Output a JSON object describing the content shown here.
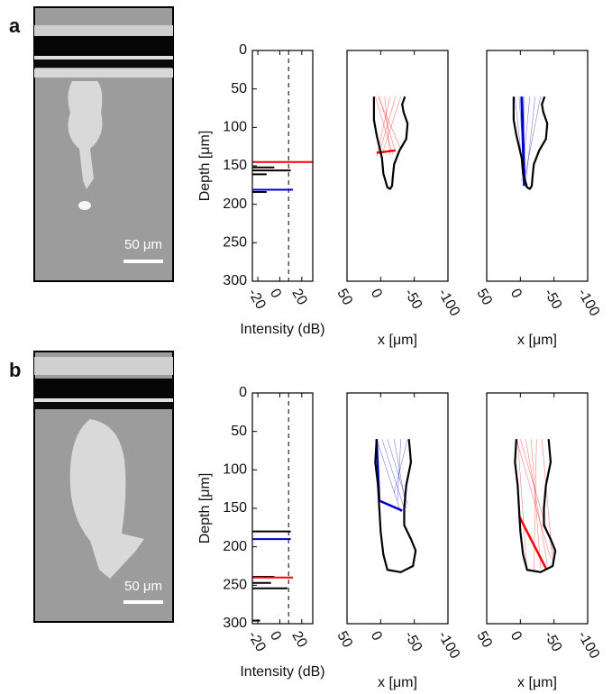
{
  "figure": {
    "panels": [
      {
        "label": "a",
        "scale_bar": "50 μm"
      },
      {
        "label": "b",
        "scale_bar": "50 μm"
      }
    ]
  },
  "chart_data": [
    {
      "type": "intensity",
      "xlabel": "Intensity (dB)",
      "ylabel": "Depth [μm]",
      "xlim": [
        -25,
        30
      ],
      "xticks": [
        -20,
        0,
        20
      ],
      "ylim": [
        0,
        300
      ],
      "yticks": [
        0,
        50,
        100,
        150,
        200,
        250,
        300
      ],
      "y_inverted": true,
      "threshold": 8,
      "y": [
        145,
        152,
        156,
        161,
        181,
        184
      ],
      "values": [
        30,
        -5,
        10,
        -12,
        12,
        -12
      ],
      "colors": [
        "#ff0000",
        "#000000",
        "#000000",
        "#000000",
        "#0000cc",
        "#000000"
      ]
    },
    {
      "type": "line",
      "xlabel": "x [μm]",
      "xlim": [
        50,
        -100
      ],
      "xticks": [
        50,
        0,
        -50,
        -100
      ],
      "ylim": [
        0,
        300
      ],
      "y_inverted": true,
      "series": [
        {
          "color": "#ff0000",
          "line_width": 0.6,
          "x": [
            8,
            -18
          ],
          "y": [
            60,
            135
          ]
        },
        {
          "color": "#ff0000",
          "line_width": 0.6,
          "x": [
            2,
            -22
          ],
          "y": [
            60,
            132
          ]
        },
        {
          "color": "#ff0000",
          "line_width": 0.6,
          "x": [
            -6,
            -14
          ],
          "y": [
            60,
            136
          ]
        },
        {
          "color": "#ff0000",
          "line_width": 0.6,
          "x": [
            -14,
            6
          ],
          "y": [
            60,
            138
          ]
        },
        {
          "color": "#ff0000",
          "line_width": 0.6,
          "x": [
            -22,
            2
          ],
          "y": [
            60,
            134
          ]
        },
        {
          "color": "#ff0000",
          "line_width": 0.6,
          "x": [
            -30,
            -4
          ],
          "y": [
            60,
            130
          ]
        },
        {
          "color": "#ff0000",
          "line_width": 0.6,
          "x": [
            4,
            -30
          ],
          "y": [
            60,
            128
          ]
        },
        {
          "color": "#ff0000",
          "line_width": 2.5,
          "x": [
            6,
            -22
          ],
          "y": [
            133,
            130
          ]
        },
        {
          "color": "#000000",
          "line_width": 2.2,
          "x": [
            10,
            10,
            6,
            2,
            -2,
            -4,
            -10,
            -14,
            -17,
            -18,
            -20,
            -28,
            -38,
            -40,
            -34,
            -32,
            -36
          ],
          "y": [
            60,
            90,
            110,
            125,
            140,
            160,
            178,
            180,
            176,
            165,
            148,
            130,
            115,
            95,
            80,
            70,
            60
          ]
        }
      ]
    },
    {
      "type": "line",
      "xlabel": "x [μm]",
      "xlim": [
        50,
        -100
      ],
      "xticks": [
        50,
        0,
        -50,
        -100
      ],
      "ylim": [
        0,
        300
      ],
      "y_inverted": true,
      "series": [
        {
          "color": "#0000cc",
          "line_width": 0.6,
          "x": [
            8,
            -6
          ],
          "y": [
            60,
            175
          ]
        },
        {
          "color": "#0000cc",
          "line_width": 0.6,
          "x": [
            2,
            -8
          ],
          "y": [
            60,
            178
          ]
        },
        {
          "color": "#0000cc",
          "line_width": 0.6,
          "x": [
            -6,
            -4
          ],
          "y": [
            60,
            176
          ]
        },
        {
          "color": "#0000cc",
          "line_width": 0.6,
          "x": [
            -14,
            -2
          ],
          "y": [
            60,
            170
          ]
        },
        {
          "color": "#0000cc",
          "line_width": 0.6,
          "x": [
            -22,
            -8
          ],
          "y": [
            60,
            172
          ]
        },
        {
          "color": "#0000cc",
          "line_width": 0.6,
          "x": [
            -30,
            -6
          ],
          "y": [
            60,
            168
          ]
        },
        {
          "color": "#0000cc",
          "line_width": 3,
          "x": [
            -2,
            -6
          ],
          "y": [
            60,
            176
          ]
        },
        {
          "color": "#000000",
          "line_width": 2.2,
          "x": [
            10,
            10,
            6,
            2,
            -2,
            -4,
            -10,
            -14,
            -17,
            -18,
            -20,
            -28,
            -38,
            -40,
            -34,
            -32,
            -36
          ],
          "y": [
            60,
            90,
            110,
            125,
            140,
            160,
            178,
            180,
            176,
            165,
            148,
            130,
            115,
            95,
            80,
            70,
            60
          ]
        }
      ]
    },
    {
      "type": "intensity",
      "xlabel": "Intensity (dB)",
      "ylabel": "Depth [μm]",
      "xlim": [
        -25,
        30
      ],
      "xticks": [
        -20,
        0,
        20
      ],
      "ylim": [
        0,
        300
      ],
      "yticks": [
        0,
        50,
        100,
        150,
        200,
        250,
        300
      ],
      "y_inverted": true,
      "threshold": 8,
      "y": [
        180,
        190,
        239,
        240,
        247,
        254,
        296
      ],
      "values": [
        10,
        10,
        -5,
        12,
        -8,
        7,
        -18
      ],
      "colors": [
        "#000000",
        "#0000cc",
        "#000000",
        "#ff0000",
        "#000000",
        "#000000",
        "#000000"
      ]
    },
    {
      "type": "line",
      "xlabel": "x [μm]",
      "xlim": [
        50,
        -100
      ],
      "xticks": [
        50,
        0,
        -50,
        -100
      ],
      "ylim": [
        0,
        300
      ],
      "y_inverted": true,
      "series": [
        {
          "color": "#0000cc",
          "line_width": 0.6,
          "x": [
            6,
            -30
          ],
          "y": [
            60,
            155
          ]
        },
        {
          "color": "#0000cc",
          "line_width": 0.6,
          "x": [
            -2,
            -35
          ],
          "y": [
            60,
            150
          ]
        },
        {
          "color": "#0000cc",
          "line_width": 0.6,
          "x": [
            -10,
            -40
          ],
          "y": [
            60,
            145
          ]
        },
        {
          "color": "#0000cc",
          "line_width": 0.6,
          "x": [
            -20,
            -38
          ],
          "y": [
            60,
            150
          ]
        },
        {
          "color": "#0000cc",
          "line_width": 0.6,
          "x": [
            -30,
            -25
          ],
          "y": [
            60,
            140
          ]
        },
        {
          "color": "#0000cc",
          "line_width": 0.6,
          "x": [
            -40,
            -20
          ],
          "y": [
            60,
            130
          ]
        },
        {
          "color": "#0000cc",
          "line_width": 2.5,
          "x": [
            6,
            2,
            -32
          ],
          "y": [
            60,
            140,
            153
          ]
        },
        {
          "color": "#000000",
          "line_width": 2.2,
          "x": [
            6,
            8,
            4,
            2,
            0,
            -4,
            -10,
            -30,
            -48,
            -52,
            -45,
            -35,
            -35,
            -38,
            -45,
            -42
          ],
          "y": [
            60,
            90,
            120,
            150,
            180,
            210,
            230,
            233,
            225,
            205,
            190,
            172,
            150,
            120,
            90,
            60
          ]
        }
      ]
    },
    {
      "type": "line",
      "xlabel": "x [μm]",
      "xlim": [
        50,
        -100
      ],
      "xticks": [
        50,
        0,
        -50,
        -100
      ],
      "ylim": [
        0,
        300
      ],
      "y_inverted": true,
      "series": [
        {
          "color": "#ff0000",
          "line_width": 0.6,
          "x": [
            6,
            -45
          ],
          "y": [
            60,
            215
          ]
        },
        {
          "color": "#ff0000",
          "line_width": 0.6,
          "x": [
            0,
            -50
          ],
          "y": [
            60,
            210
          ]
        },
        {
          "color": "#ff0000",
          "line_width": 0.6,
          "x": [
            -8,
            -40
          ],
          "y": [
            60,
            222
          ]
        },
        {
          "color": "#ff0000",
          "line_width": 0.6,
          "x": [
            -16,
            -30
          ],
          "y": [
            60,
            228
          ]
        },
        {
          "color": "#ff0000",
          "line_width": 0.6,
          "x": [
            -24,
            -20
          ],
          "y": [
            60,
            230
          ]
        },
        {
          "color": "#ff0000",
          "line_width": 0.6,
          "x": [
            -32,
            -48
          ],
          "y": [
            60,
            218
          ]
        },
        {
          "color": "#ff0000",
          "line_width": 0.6,
          "x": [
            4,
            -10
          ],
          "y": [
            60,
            232
          ]
        },
        {
          "color": "#ff0000",
          "line_width": 2.5,
          "x": [
            2,
            -38
          ],
          "y": [
            160,
            228
          ]
        },
        {
          "color": "#000000",
          "line_width": 2.2,
          "x": [
            6,
            8,
            4,
            2,
            0,
            -4,
            -10,
            -30,
            -48,
            -52,
            -45,
            -35,
            -35,
            -38,
            -45,
            -42
          ],
          "y": [
            60,
            90,
            120,
            150,
            180,
            210,
            230,
            233,
            225,
            205,
            190,
            172,
            150,
            120,
            90,
            60
          ]
        }
      ]
    }
  ]
}
